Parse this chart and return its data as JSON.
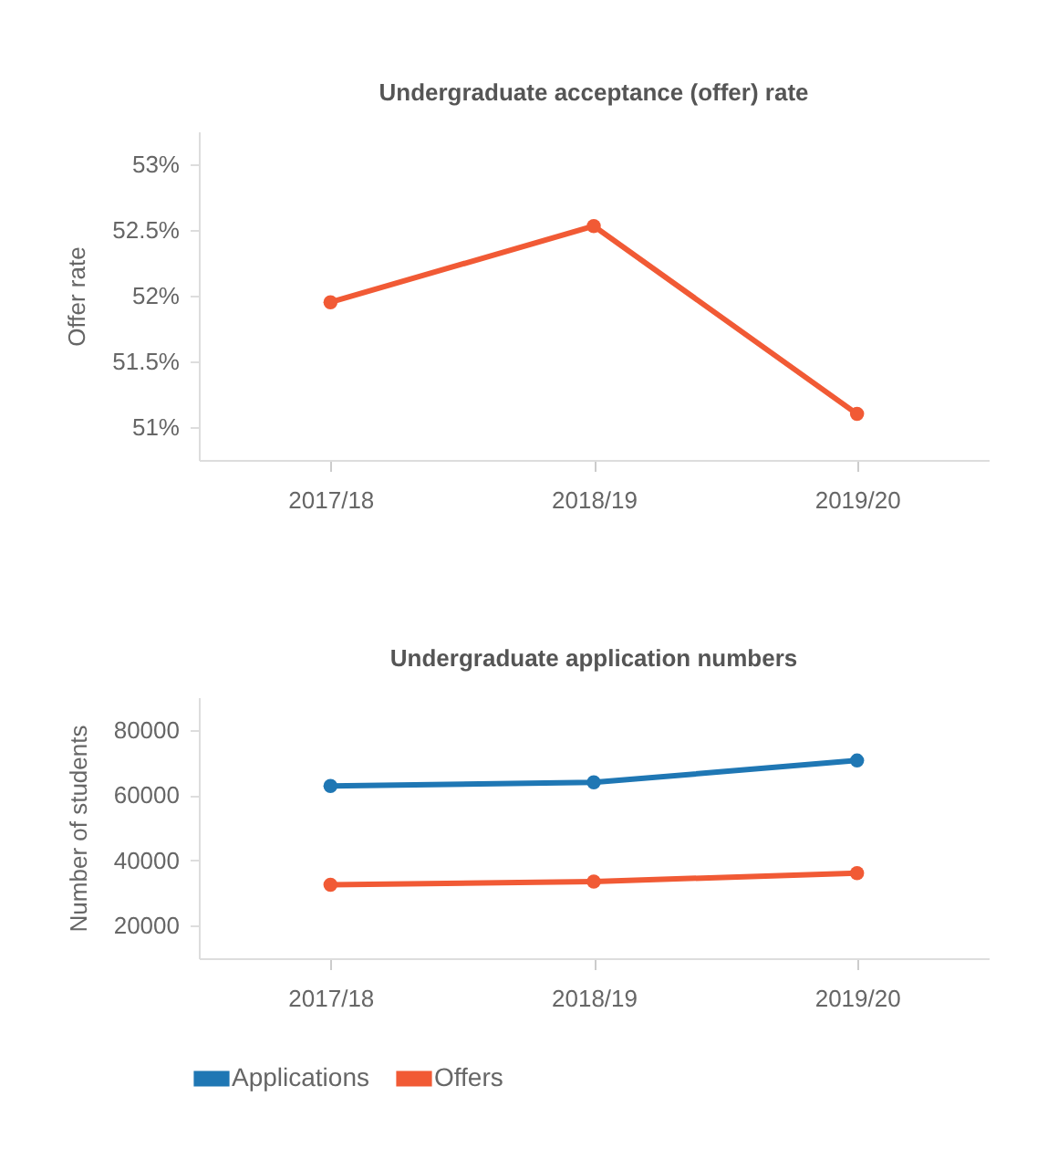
{
  "chart_data": [
    {
      "type": "line",
      "title": "Undergraduate acceptance (offer) rate",
      "ylabel": "Offer rate",
      "categories": [
        "2017/18",
        "2018/19",
        "2019/20"
      ],
      "series": [
        {
          "color": "#f15a35",
          "values": [
            51.95,
            52.53,
            51.1
          ]
        }
      ],
      "ylim": [
        50.75,
        53.25
      ],
      "yticks": [
        {
          "value": 51,
          "label": "51%"
        },
        {
          "value": 51.5,
          "label": "51.5%"
        },
        {
          "value": 52,
          "label": "52%"
        },
        {
          "value": 52.5,
          "label": "52.5%"
        },
        {
          "value": 53,
          "label": "53%"
        }
      ],
      "marker": "circle",
      "legend": false
    },
    {
      "type": "line",
      "title": "Undergraduate application numbers",
      "ylabel": "Number of students",
      "categories": [
        "2017/18",
        "2018/19",
        "2019/20"
      ],
      "series": [
        {
          "name": "Applications",
          "color": "#1f77b4",
          "values": [
            62800,
            63900,
            70600
          ]
        },
        {
          "name": "Offers",
          "color": "#f15a35",
          "values": [
            32500,
            33500,
            36100
          ]
        }
      ],
      "ylim": [
        10000,
        90000
      ],
      "yticks": [
        20000,
        40000,
        60000,
        80000
      ],
      "marker": "circle",
      "legend": "bottom"
    }
  ]
}
